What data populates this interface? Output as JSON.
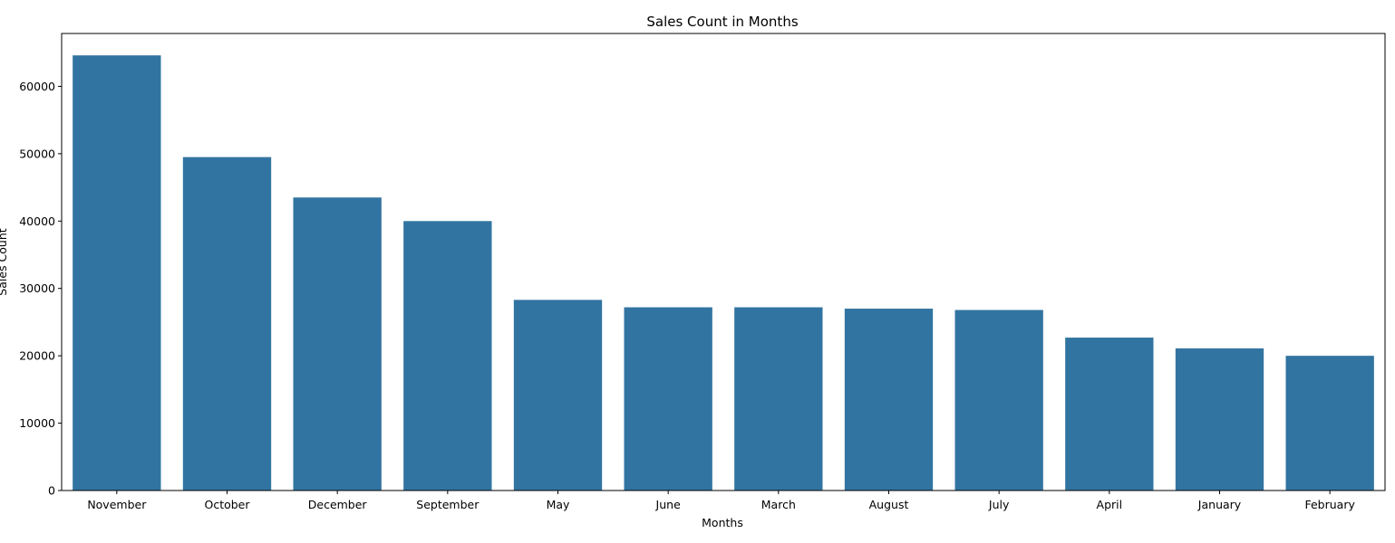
{
  "chart_data": {
    "type": "bar",
    "title": "Sales Count in Months",
    "xlabel": "Months",
    "ylabel": "Sales Count",
    "categories": [
      "November",
      "October",
      "December",
      "September",
      "May",
      "June",
      "March",
      "August",
      "July",
      "April",
      "January",
      "February"
    ],
    "values": [
      64600,
      49500,
      43500,
      40000,
      28300,
      27200,
      27200,
      27000,
      26800,
      22700,
      21100,
      20000
    ],
    "ylim": [
      0,
      67850
    ],
    "yticks": [
      0,
      10000,
      20000,
      30000,
      40000,
      50000,
      60000
    ],
    "ytick_labels": [
      "0",
      "10000",
      "20000",
      "30000",
      "40000",
      "50000",
      "60000"
    ],
    "bar_color": "#3274a1",
    "grid": false,
    "legend": "none"
  }
}
